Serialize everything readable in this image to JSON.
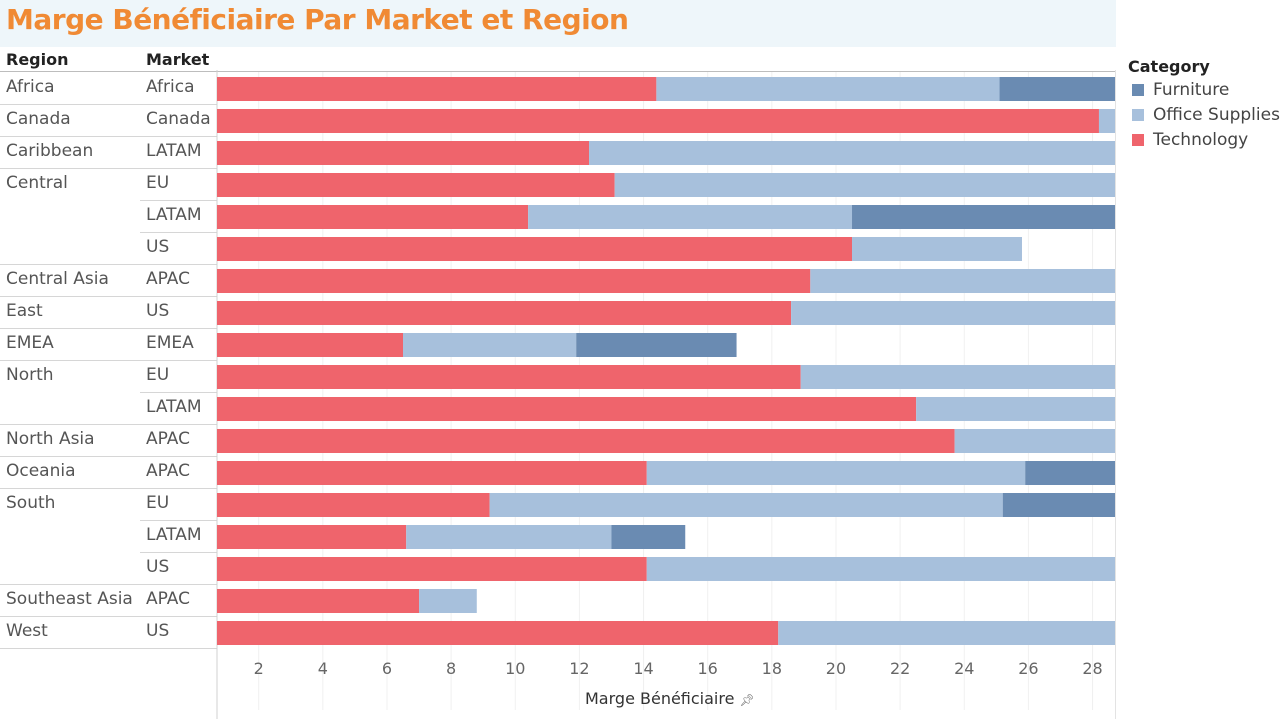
{
  "title": "Marge Bénéficiaire Par Market et Region",
  "headers": {
    "region": "Region",
    "market": "Market"
  },
  "legend": {
    "title": "Category",
    "items": [
      {
        "label": "Furniture",
        "color": "#6a8bb2"
      },
      {
        "label": "Office Supplies",
        "color": "#a7c0dc"
      },
      {
        "label": "Technology",
        "color": "#ef646c"
      }
    ]
  },
  "xaxis": {
    "label": "Marge Bénéficiaire",
    "pin_icon": "pin-icon"
  },
  "chart_data": {
    "type": "bar",
    "orientation": "horizontal",
    "stacked": true,
    "xlabel": "Marge Bénéficiaire",
    "xlim": [
      0.7,
      28.7
    ],
    "xticks": [
      2,
      4,
      6,
      8,
      10,
      12,
      14,
      16,
      18,
      20,
      22,
      24,
      26,
      28
    ],
    "grid": true,
    "legend_position": "right",
    "rows": [
      {
        "region": "Africa",
        "market": "Africa",
        "technology": 13.7,
        "office_supplies": 10.7,
        "furniture": 4.5
      },
      {
        "region": "Canada",
        "market": "Canada",
        "technology": 27.5,
        "office_supplies": 1.5,
        "furniture": 0
      },
      {
        "region": "Caribbean",
        "market": "LATAM",
        "technology": 11.6,
        "office_supplies": 16.6,
        "furniture": 0.7
      },
      {
        "region": "Central",
        "market": "EU",
        "technology": 12.4,
        "office_supplies": 16.1,
        "furniture": 0.3
      },
      {
        "region": "",
        "market": "LATAM",
        "technology": 9.7,
        "office_supplies": 10.1,
        "furniture": 8.4
      },
      {
        "region": "",
        "market": "US",
        "technology": 19.8,
        "office_supplies": 5.3,
        "furniture": 0
      },
      {
        "region": "Central Asia",
        "market": "APAC",
        "technology": 18.5,
        "office_supplies": 10.5,
        "furniture": 0
      },
      {
        "region": "East",
        "market": "US",
        "technology": 17.9,
        "office_supplies": 11.0,
        "furniture": 0
      },
      {
        "region": "EMEA",
        "market": "EMEA",
        "technology": 5.8,
        "office_supplies": 5.4,
        "furniture": 5.0
      },
      {
        "region": "North",
        "market": "EU",
        "technology": 18.2,
        "office_supplies": 10.6,
        "furniture": 0
      },
      {
        "region": "",
        "market": "LATAM",
        "technology": 21.8,
        "office_supplies": 7.0,
        "furniture": 0
      },
      {
        "region": "North Asia",
        "market": "APAC",
        "technology": 23.0,
        "office_supplies": 6.0,
        "furniture": 0
      },
      {
        "region": "Oceania",
        "market": "APAC",
        "technology": 13.4,
        "office_supplies": 11.8,
        "furniture": 4.0
      },
      {
        "region": "South",
        "market": "EU",
        "technology": 8.5,
        "office_supplies": 16.0,
        "furniture": 4.5
      },
      {
        "region": "",
        "market": "LATAM",
        "technology": 5.9,
        "office_supplies": 6.4,
        "furniture": 2.3
      },
      {
        "region": "",
        "market": "US",
        "technology": 13.4,
        "office_supplies": 15.6,
        "furniture": 0
      },
      {
        "region": "Southeast Asia",
        "market": "APAC",
        "technology": 6.3,
        "office_supplies": 1.8,
        "furniture": 0
      },
      {
        "region": "West",
        "market": "US",
        "technology": 17.5,
        "office_supplies": 11.5,
        "furniture": 0
      }
    ]
  }
}
